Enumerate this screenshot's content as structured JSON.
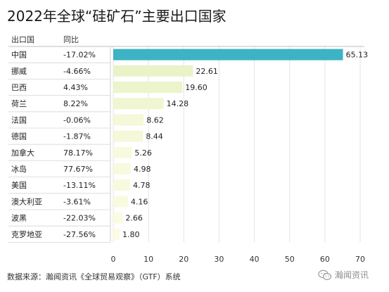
{
  "title": "2022年全球“硅矿石”主要出口国家",
  "header": {
    "country": "出口国",
    "change": "同比"
  },
  "footer": "数据来源：瀚闻资讯《全球贸易观察》（GTF）系统",
  "watermark": {
    "text": "瀚闻资讯",
    "icon": "wechat-icon"
  },
  "colors": {
    "top_bar": "#3db3c3",
    "bar_high": "#e9f3c7",
    "bar_low": "#fbfbe2",
    "grid": "#e3e3e3",
    "row_line": "#d6d6d6"
  },
  "chart_data": {
    "type": "bar",
    "orientation": "horizontal",
    "title": "2022年全球“硅矿石”主要出口国家",
    "columns": [
      "出口国",
      "同比"
    ],
    "categories": [
      "中国",
      "挪威",
      "巴西",
      "荷兰",
      "法国",
      "德国",
      "加拿大",
      "冰岛",
      "美国",
      "澳大利亚",
      "波黑",
      "克罗地亚"
    ],
    "yoy": [
      "-17.02%",
      "-4.66%",
      "4.43%",
      "8.22%",
      "-0.06%",
      "-1.87%",
      "78.17%",
      "77.67%",
      "-13.11%",
      "-3.61%",
      "-22.03%",
      "-27.56%"
    ],
    "values": [
      65.13,
      22.61,
      19.6,
      14.28,
      8.62,
      8.44,
      5.26,
      4.98,
      4.78,
      4.16,
      2.66,
      1.8
    ],
    "value_labels": [
      "65.13",
      "22.61",
      "19.60",
      "14.28",
      "8.62",
      "8.44",
      "5.26",
      "4.98",
      "4.78",
      "4.16",
      "2.66",
      "1.80"
    ],
    "xlim": [
      0,
      70
    ],
    "xticks": [
      0,
      10,
      20,
      30,
      40,
      50,
      60,
      70
    ],
    "grid": true
  }
}
